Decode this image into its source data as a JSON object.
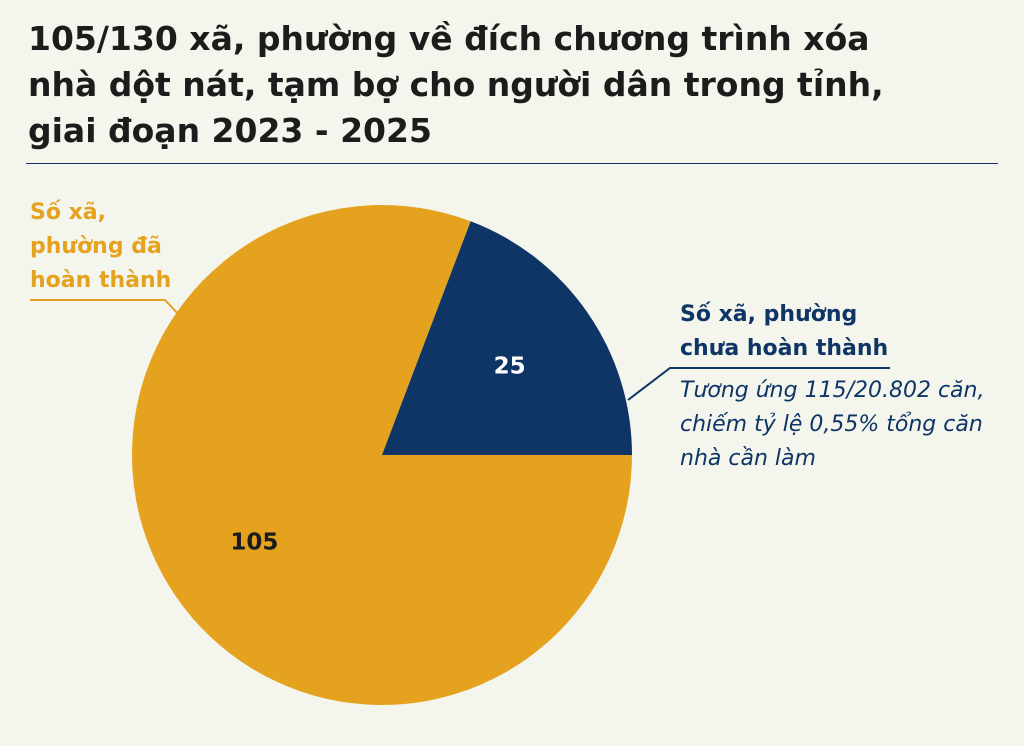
{
  "title": "105/130 xã, phường về đích chương trình xóa\nnhà dột nát, tạm bợ cho người dân trong tỉnh,\ngiai đoạn 2023 - 2025",
  "colors": {
    "completed": "#e5a21f",
    "incomplete": "#0e3566",
    "background": "#f4f5ec"
  },
  "chart_data": {
    "type": "pie",
    "slices": [
      {
        "name": "Số xã,\nphường đã\nhoàn thành",
        "value": 105,
        "label": "105",
        "color": "#e5a21f"
      },
      {
        "name": "Số xã, phường\nchưa hoàn thành",
        "value": 25,
        "label": "25",
        "color": "#0e3566"
      }
    ],
    "total": 130,
    "annotation": "Tương ứng 115/20.802 căn,\nchiếm tỷ lệ 0,55% tổng căn\nnhà cần làm"
  }
}
